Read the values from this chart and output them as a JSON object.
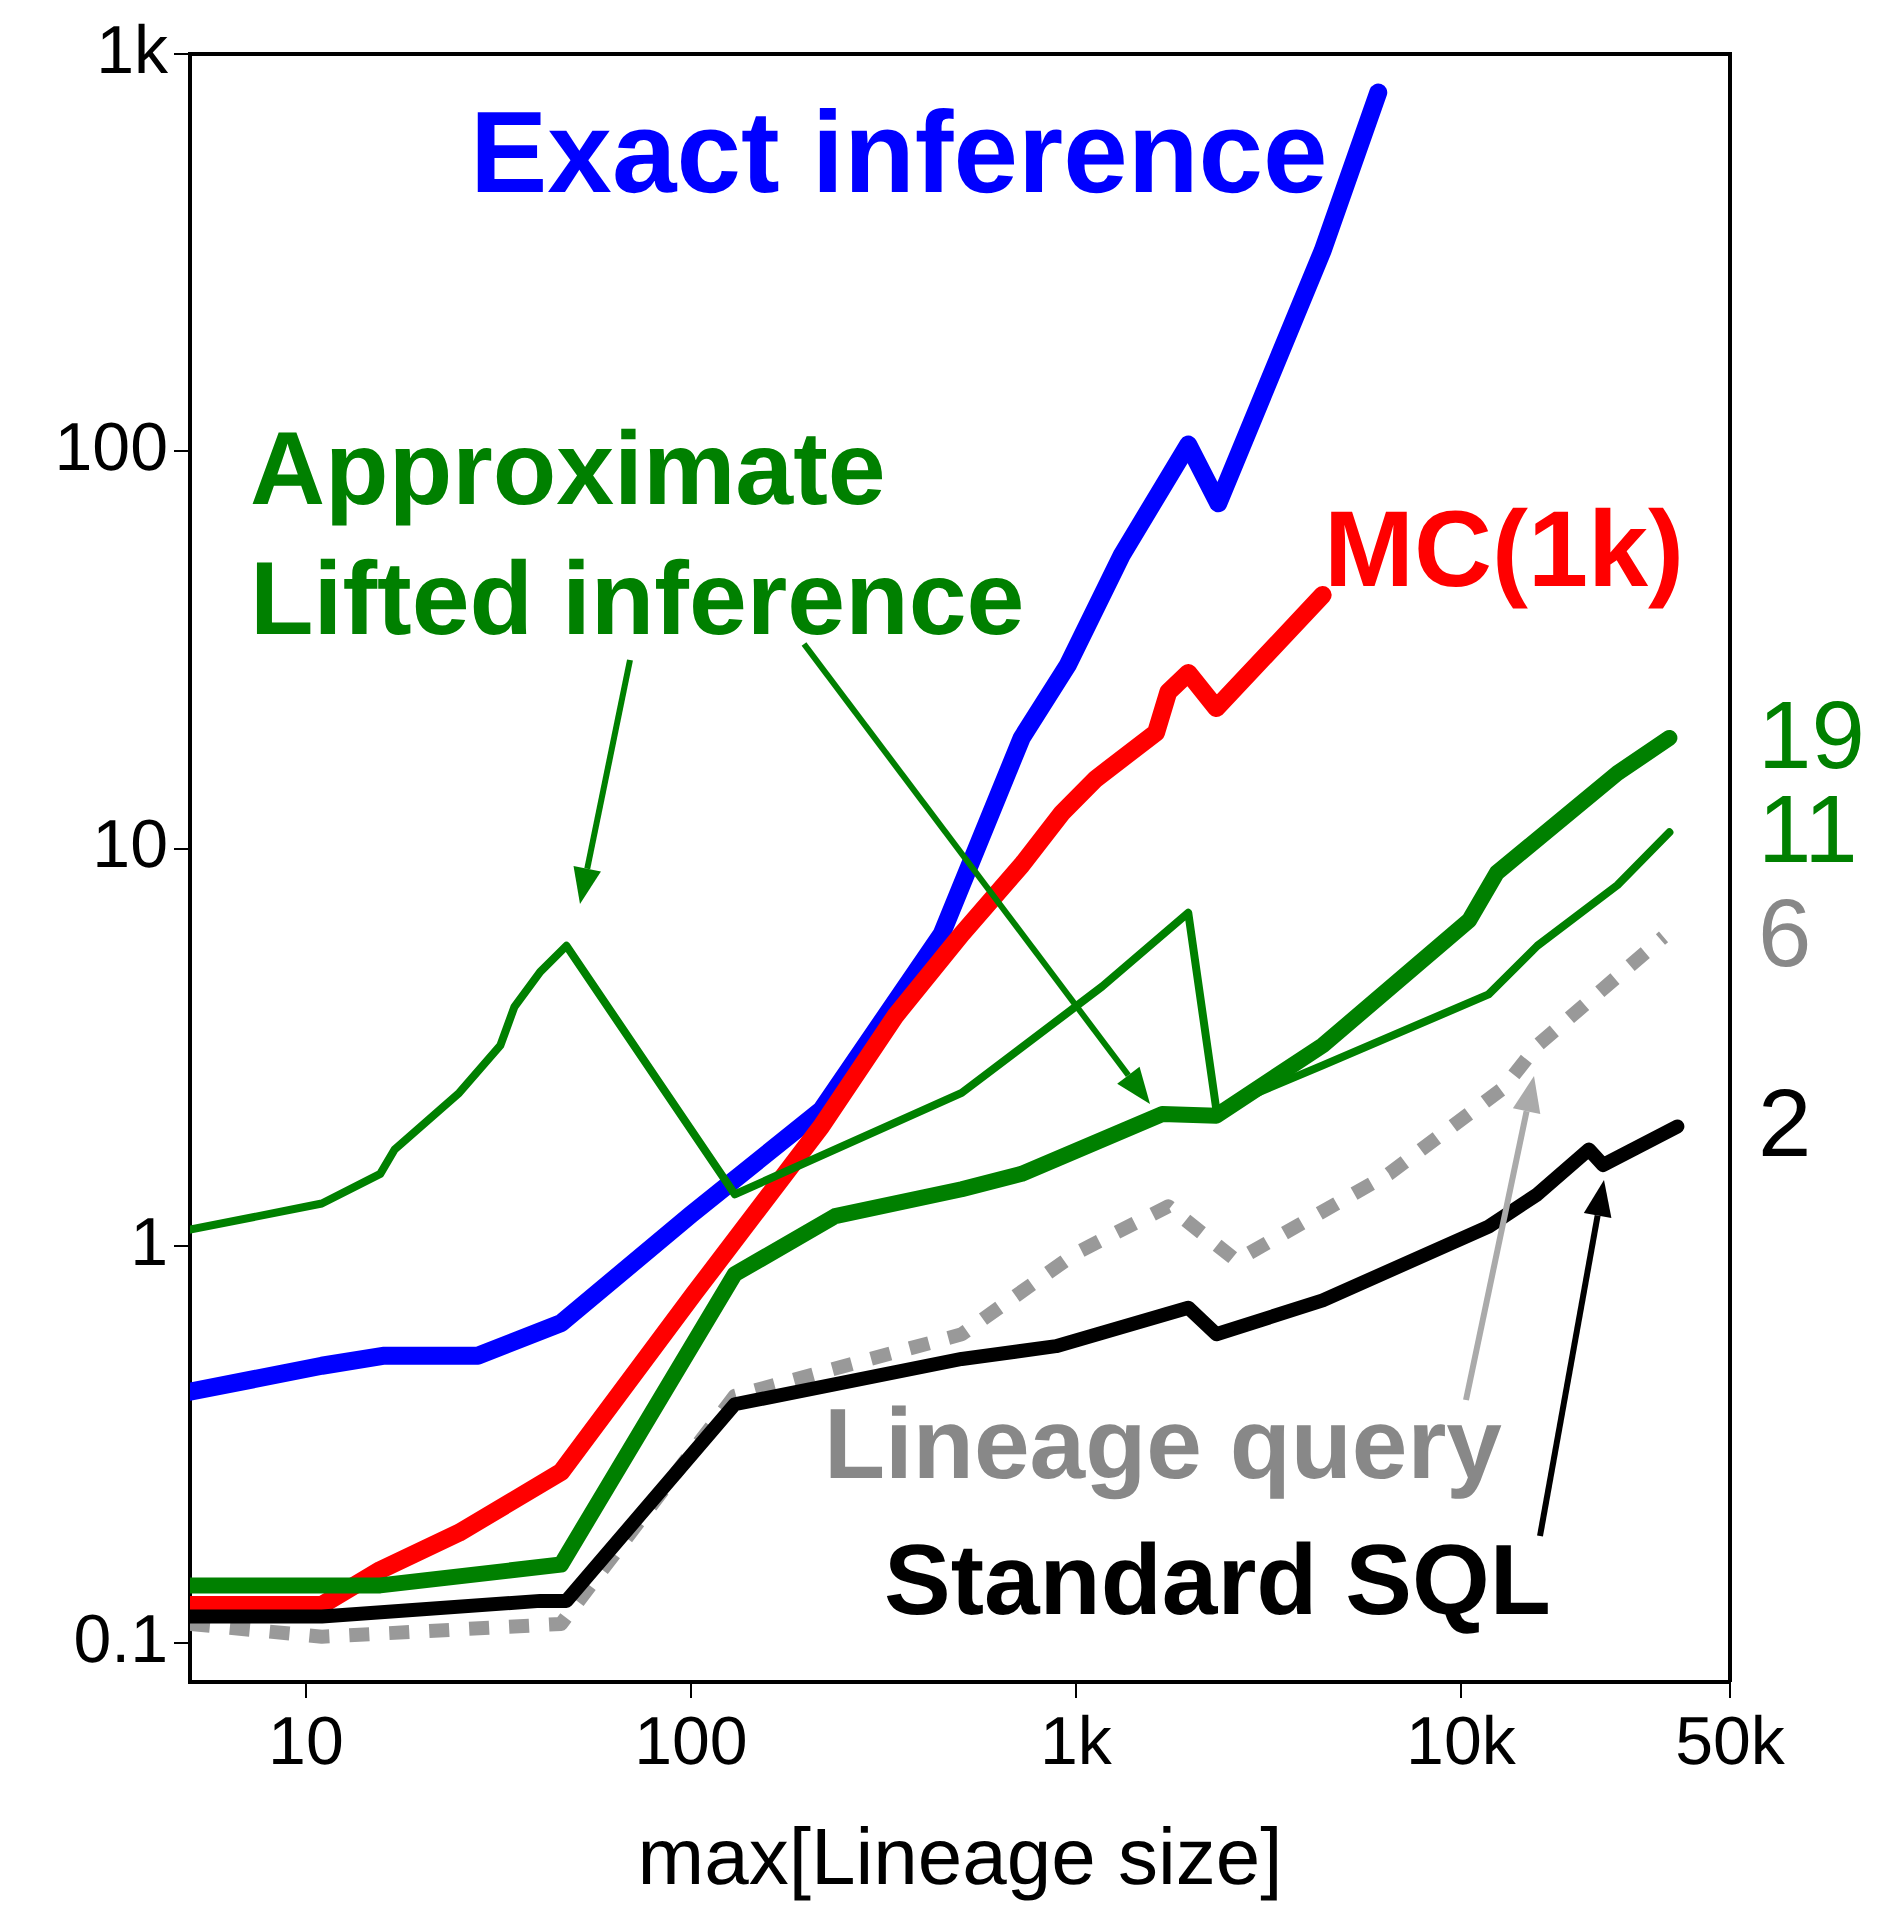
{
  "chart_data": {
    "type": "line",
    "xlabel": "max[Lineage size]",
    "log": "xy",
    "grid": false,
    "legend": false,
    "marker": "none",
    "xlim": [
      5,
      50000
    ],
    "xticks": [
      10,
      100,
      {
        "value": 1000,
        "label": "1k"
      },
      {
        "value": 10000,
        "label": "10k"
      },
      {
        "value": 50000,
        "label": "50k"
      }
    ],
    "ylim": [
      0.08,
      1000
    ],
    "yticks": [
      {
        "value": 0.1,
        "label": "0.1"
      },
      1,
      10,
      100,
      {
        "value": 1000,
        "label": "1k"
      }
    ],
    "annotations": [
      "Approximate Lifted inference"
    ],
    "series": [
      {
        "name": "Exact inference",
        "color": "#0000ff",
        "x": [
          5,
          11,
          16,
          28,
          46,
          100,
          218,
          448,
          723,
          953,
          1318,
          1958,
          2344,
          4375,
          6100
        ],
        "values": [
          0.43,
          0.5,
          0.53,
          0.53,
          0.64,
          1.2,
          2.2,
          6.1,
          19,
          29,
          55,
          104,
          74,
          320,
          800
        ]
      },
      {
        "name": "MC(1k)",
        "color": "#ff0000",
        "x": [
          5,
          11,
          15.6,
          25,
          46,
          102,
          218,
          340,
          505,
          723,
          920,
          1127,
          1615,
          1738,
          1958,
          2317,
          4375
        ],
        "values": [
          0.125,
          0.125,
          0.153,
          0.19,
          0.27,
          0.76,
          2.0,
          3.8,
          6.1,
          9.1,
          12.3,
          15,
          19.6,
          24.8,
          27.7,
          22.6,
          43.5
        ]
      },
      {
        "color": "#008000",
        "x": [
          5,
          15.6,
          46,
          130,
          237,
          505,
          723,
          1675,
          2317,
          4375,
          10500,
          12400,
          25500,
          34800
        ],
        "values": [
          0.14,
          0.14,
          0.158,
          0.85,
          1.19,
          1.39,
          1.52,
          2.15,
          2.13,
          3.2,
          6.6,
          8.7,
          15.5,
          19
        ],
        "value_labels": [
          null,
          null,
          null,
          null,
          null,
          null,
          null,
          null,
          null,
          null,
          null,
          null,
          null,
          "19"
        ]
      },
      {
        "color": "#008000",
        "x": [
          5,
          11,
          15.6,
          17,
          25,
          32,
          34.8,
          40.6,
          47.5,
          130,
          505,
          1170,
          1958,
          2317,
          4375,
          11800,
          15800,
          25500,
          34800
        ],
        "values": [
          1.1,
          1.28,
          1.52,
          1.75,
          2.43,
          3.2,
          4.0,
          4.9,
          5.7,
          1.35,
          2.43,
          4.5,
          6.9,
          2.2,
          2.85,
          4.3,
          5.7,
          8.1,
          11
        ],
        "value_labels": [
          null,
          null,
          null,
          null,
          null,
          null,
          null,
          null,
          null,
          null,
          null,
          null,
          null,
          null,
          null,
          null,
          null,
          null,
          "11"
        ]
      },
      {
        "name": "Lineage query",
        "color": "#999999",
        "line_style": "dashed",
        "x": [
          5,
          11,
          46,
          130,
          505,
          1000,
          1738,
          2610,
          6500,
          12900,
          15800,
          33600
        ],
        "values": [
          0.112,
          0.104,
          0.112,
          0.42,
          0.6,
          0.96,
          1.26,
          0.92,
          1.52,
          2.5,
          3.2,
          6
        ],
        "value_labels": [
          null,
          null,
          null,
          null,
          null,
          null,
          null,
          null,
          null,
          null,
          null,
          "6"
        ]
      },
      {
        "name": "Standard SQL",
        "color": "#000000",
        "x": [
          5,
          11,
          40.6,
          47.5,
          130,
          505,
          888,
          1958,
          2317,
          4375,
          11800,
          15800,
          21500,
          23400,
          36500
        ],
        "values": [
          0.117,
          0.117,
          0.128,
          0.128,
          0.4,
          0.52,
          0.56,
          0.7,
          0.6,
          0.73,
          1.12,
          1.35,
          1.75,
          1.6,
          2
        ],
        "value_labels": [
          null,
          null,
          null,
          null,
          null,
          null,
          null,
          null,
          null,
          null,
          null,
          null,
          null,
          null,
          "2"
        ]
      }
    ]
  }
}
